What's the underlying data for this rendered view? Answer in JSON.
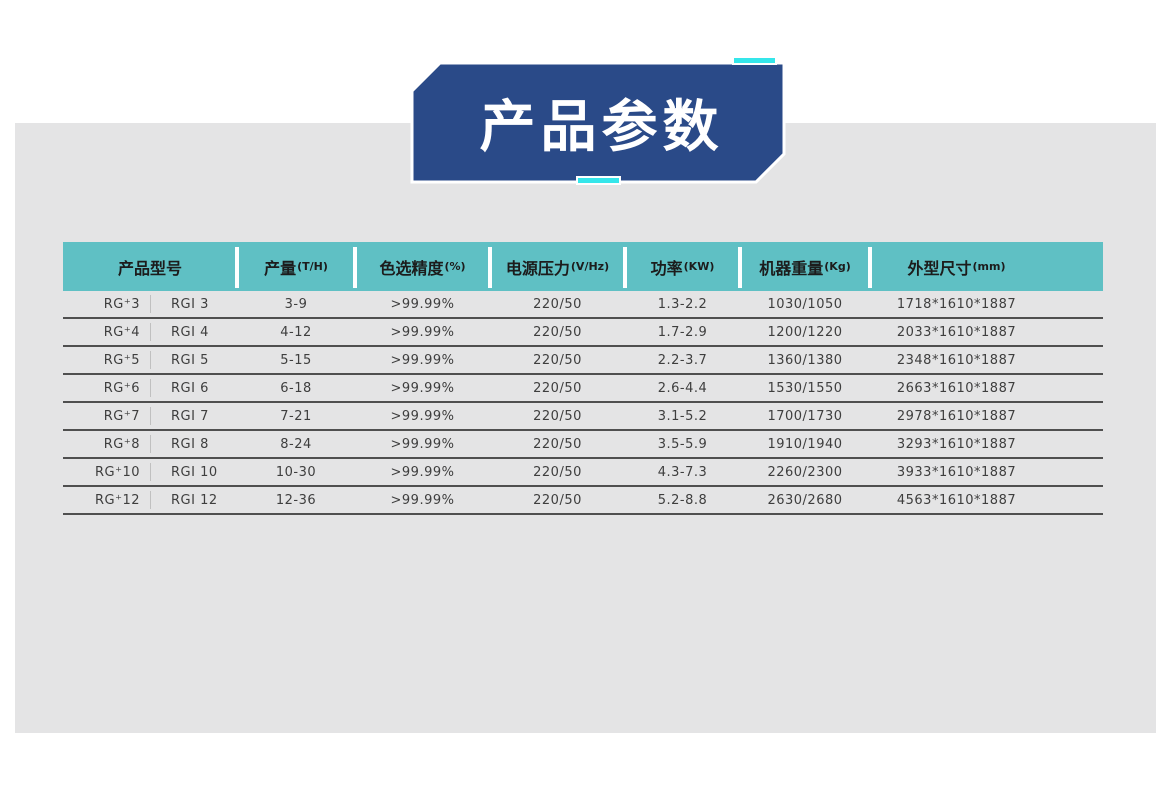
{
  "banner": {
    "title": "产品参数",
    "shape_color": "#2a4a88",
    "accent_color": "#35e6ea"
  },
  "table": {
    "header_bg": "#5fc0c4",
    "columns": [
      {
        "label": "产品型号",
        "unit": ""
      },
      {
        "label": "产量",
        "unit": "(T/H)"
      },
      {
        "label": "色选精度",
        "unit": "(%)"
      },
      {
        "label": "电源压力",
        "unit": "(V/Hz)"
      },
      {
        "label": "功率",
        "unit": "(KW)"
      },
      {
        "label": "机器重量",
        "unit": "(Kg)"
      },
      {
        "label": "外型尺寸",
        "unit": "(mm)"
      }
    ],
    "rows": [
      {
        "model_plus": "RG⁺3",
        "model_rgi": "RGI 3",
        "output_th": "3-9",
        "accuracy_pct": ">99.99%",
        "voltage_vhz": "220/50",
        "power_kw": "1.3-2.2",
        "weight_kg": "1030/1050",
        "dimensions_mm": "1718*1610*1887"
      },
      {
        "model_plus": "RG⁺4",
        "model_rgi": "RGI 4",
        "output_th": "4-12",
        "accuracy_pct": ">99.99%",
        "voltage_vhz": "220/50",
        "power_kw": "1.7-2.9",
        "weight_kg": "1200/1220",
        "dimensions_mm": "2033*1610*1887"
      },
      {
        "model_plus": "RG⁺5",
        "model_rgi": "RGI 5",
        "output_th": "5-15",
        "accuracy_pct": ">99.99%",
        "voltage_vhz": "220/50",
        "power_kw": "2.2-3.7",
        "weight_kg": "1360/1380",
        "dimensions_mm": "2348*1610*1887"
      },
      {
        "model_plus": "RG⁺6",
        "model_rgi": "RGI 6",
        "output_th": "6-18",
        "accuracy_pct": ">99.99%",
        "voltage_vhz": "220/50",
        "power_kw": "2.6-4.4",
        "weight_kg": "1530/1550",
        "dimensions_mm": "2663*1610*1887"
      },
      {
        "model_plus": "RG⁺7",
        "model_rgi": "RGI 7",
        "output_th": "7-21",
        "accuracy_pct": ">99.99%",
        "voltage_vhz": "220/50",
        "power_kw": "3.1-5.2",
        "weight_kg": "1700/1730",
        "dimensions_mm": "2978*1610*1887"
      },
      {
        "model_plus": "RG⁺8",
        "model_rgi": "RGI 8",
        "output_th": "8-24",
        "accuracy_pct": ">99.99%",
        "voltage_vhz": "220/50",
        "power_kw": "3.5-5.9",
        "weight_kg": "1910/1940",
        "dimensions_mm": "3293*1610*1887"
      },
      {
        "model_plus": "RG⁺10",
        "model_rgi": "RGI 10",
        "output_th": "10-30",
        "accuracy_pct": ">99.99%",
        "voltage_vhz": "220/50",
        "power_kw": "4.3-7.3",
        "weight_kg": "2260/2300",
        "dimensions_mm": "3933*1610*1887"
      },
      {
        "model_plus": "RG⁺12",
        "model_rgi": "RGI 12",
        "output_th": "12-36",
        "accuracy_pct": ">99.99%",
        "voltage_vhz": "220/50",
        "power_kw": "5.2-8.8",
        "weight_kg": "2630/2680",
        "dimensions_mm": "4563*1610*1887"
      }
    ]
  }
}
